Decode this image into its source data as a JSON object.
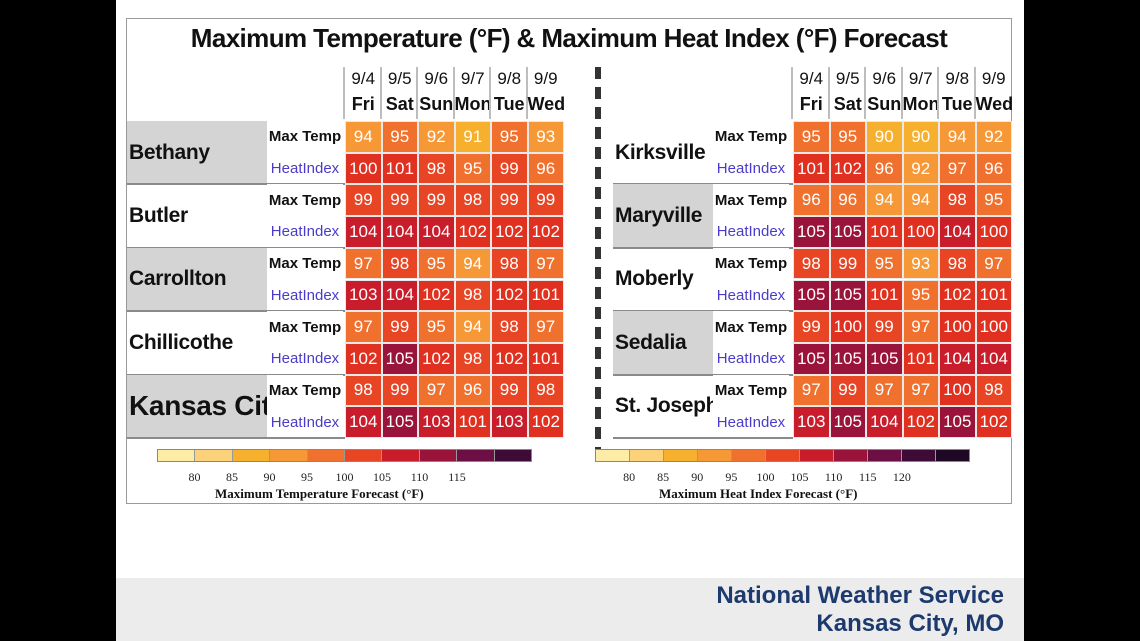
{
  "title": "Maximum Temperature (°F) & Maximum Heat Index (°F) Forecast",
  "days": [
    {
      "date": "9/4",
      "day": "Fri"
    },
    {
      "date": "9/5",
      "day": "Sat"
    },
    {
      "date": "9/6",
      "day": "Sun"
    },
    {
      "date": "9/7",
      "day": "Mon"
    },
    {
      "date": "9/8",
      "day": "Tue"
    },
    {
      "date": "9/9",
      "day": "Wed"
    }
  ],
  "row_labels": {
    "max_temp": "Max Temp",
    "heat_index": "HeatIndex"
  },
  "chart_data": {
    "type": "table",
    "left_table": [
      {
        "city": "Bethany",
        "max_temp": [
          94,
          95,
          92,
          91,
          95,
          93
        ],
        "heat_index": [
          100,
          101,
          98,
          95,
          99,
          96
        ]
      },
      {
        "city": "Butler",
        "max_temp": [
          99,
          99,
          99,
          98,
          99,
          99
        ],
        "heat_index": [
          104,
          104,
          104,
          102,
          102,
          102
        ]
      },
      {
        "city": "Carrollton",
        "max_temp": [
          97,
          98,
          95,
          94,
          98,
          97
        ],
        "heat_index": [
          103,
          104,
          102,
          98,
          102,
          101
        ]
      },
      {
        "city": "Chillicothe",
        "max_temp": [
          97,
          99,
          95,
          94,
          98,
          97
        ],
        "heat_index": [
          102,
          105,
          102,
          98,
          102,
          101
        ]
      },
      {
        "city": "Kansas City",
        "max_temp": [
          98,
          99,
          97,
          96,
          99,
          98
        ],
        "heat_index": [
          104,
          105,
          103,
          101,
          103,
          102
        ]
      }
    ],
    "right_table": [
      {
        "city": "Kirksville",
        "max_temp": [
          95,
          95,
          90,
          90,
          94,
          92
        ],
        "heat_index": [
          101,
          102,
          96,
          92,
          97,
          96
        ]
      },
      {
        "city": "Maryville",
        "max_temp": [
          96,
          96,
          94,
          94,
          98,
          95
        ],
        "heat_index": [
          105,
          105,
          101,
          100,
          104,
          100
        ]
      },
      {
        "city": "Moberly",
        "max_temp": [
          98,
          99,
          95,
          93,
          98,
          97
        ],
        "heat_index": [
          105,
          105,
          101,
          95,
          102,
          101
        ]
      },
      {
        "city": "Sedalia",
        "max_temp": [
          99,
          100,
          99,
          97,
          100,
          100
        ],
        "heat_index": [
          105,
          105,
          105,
          101,
          104,
          104
        ]
      },
      {
        "city": "St. Joseph",
        "max_temp": [
          97,
          99,
          97,
          97,
          100,
          98
        ],
        "heat_index": [
          103,
          105,
          104,
          102,
          105,
          102
        ]
      }
    ],
    "legend_temp": {
      "title": "Maximum Temperature Forecast (°F)",
      "ticks": [
        "80",
        "85",
        "90",
        "95",
        "100",
        "105",
        "110",
        "115"
      ],
      "colors": [
        "#fdeca6",
        "#fbd27a",
        "#f7b02d",
        "#f79837",
        "#f0702d",
        "#e74524",
        "#c91d2b",
        "#99133a",
        "#6d0f45",
        "#3d0b36"
      ]
    },
    "legend_heat": {
      "title": "Maximum Heat Index Forecast (°F)",
      "ticks": [
        "80",
        "85",
        "90",
        "95",
        "100",
        "105",
        "110",
        "115",
        "120"
      ],
      "colors": [
        "#fdeca6",
        "#fbd27a",
        "#f7b02d",
        "#f79837",
        "#f0702d",
        "#e74524",
        "#c91d2b",
        "#99133a",
        "#6d0f45",
        "#3d0b36",
        "#1e0824"
      ]
    }
  },
  "footer": {
    "line1": "National Weather Service",
    "line2": "Kansas City, MO"
  }
}
